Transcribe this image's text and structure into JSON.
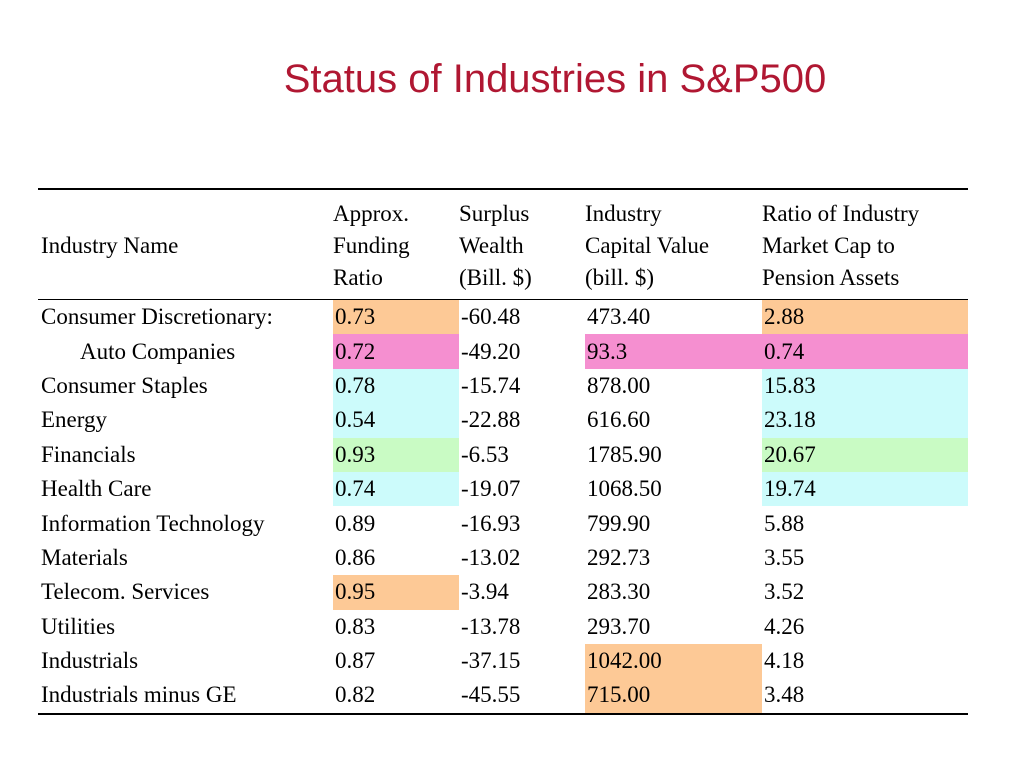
{
  "title": "Status of Industries in S&P500",
  "colors": {
    "title": "#b01732",
    "orange": "#fdc996",
    "pink": "#f58fd0",
    "cyan": "#ccfbfb",
    "green": "#c9fbc4"
  },
  "table": {
    "headers": [
      [
        "Industry Name"
      ],
      [
        "Approx.",
        "Funding",
        "Ratio"
      ],
      [
        "Surplus",
        "Wealth",
        "(Bill. $)"
      ],
      [
        "Industry",
        "Capital Value",
        "(bill. $)"
      ],
      [
        "Ratio of Industry",
        "Market Cap to",
        "Pension Assets"
      ]
    ],
    "rows": [
      {
        "name": "Consumer Discretionary:",
        "indent": false,
        "cells": [
          "0.73",
          "-60.48",
          "473.40",
          "2.88"
        ],
        "highlight": [
          "orange",
          "",
          "",
          "orange"
        ]
      },
      {
        "name": "Auto Companies",
        "indent": true,
        "cells": [
          "0.72",
          "-49.20",
          "93.3",
          "0.74"
        ],
        "highlight": [
          "pink",
          "",
          "pink",
          "pink"
        ]
      },
      {
        "name": "Consumer Staples",
        "indent": false,
        "cells": [
          "0.78",
          "-15.74",
          "878.00",
          "15.83"
        ],
        "highlight": [
          "cyan",
          "",
          "",
          "cyan"
        ]
      },
      {
        "name": "Energy",
        "indent": false,
        "cells": [
          "0.54",
          "-22.88",
          "616.60",
          "23.18"
        ],
        "highlight": [
          "cyan",
          "",
          "",
          "cyan"
        ]
      },
      {
        "name": "Financials",
        "indent": false,
        "cells": [
          "0.93",
          "-6.53",
          "1785.90",
          "20.67"
        ],
        "highlight": [
          "green",
          "",
          "",
          "green"
        ]
      },
      {
        "name": "Health Care",
        "indent": false,
        "cells": [
          "0.74",
          "-19.07",
          "1068.50",
          "19.74"
        ],
        "highlight": [
          "cyan",
          "",
          "",
          "cyan"
        ]
      },
      {
        "name": "Information Technology",
        "indent": false,
        "cells": [
          "0.89",
          "-16.93",
          "799.90",
          "5.88"
        ],
        "highlight": [
          "",
          "",
          "",
          ""
        ]
      },
      {
        "name": "Materials",
        "indent": false,
        "cells": [
          "0.86",
          "-13.02",
          "292.73",
          "3.55"
        ],
        "highlight": [
          "",
          "",
          "",
          ""
        ]
      },
      {
        "name": "Telecom. Services",
        "indent": false,
        "cells": [
          "0.95",
          "-3.94",
          "283.30",
          "3.52"
        ],
        "highlight": [
          "orange",
          "",
          "",
          ""
        ]
      },
      {
        "name": "Utilities",
        "indent": false,
        "cells": [
          "0.83",
          "-13.78",
          "293.70",
          "4.26"
        ],
        "highlight": [
          "",
          "",
          "",
          ""
        ]
      },
      {
        "name": "Industrials",
        "indent": false,
        "cells": [
          "0.87",
          "-37.15",
          "1042.00",
          "4.18"
        ],
        "highlight": [
          "",
          "",
          "orange",
          ""
        ]
      },
      {
        "name": "Industrials minus GE",
        "indent": false,
        "cells": [
          "0.82",
          "-45.55",
          "715.00",
          "3.48"
        ],
        "highlight": [
          "",
          "",
          "orange",
          ""
        ]
      }
    ]
  }
}
